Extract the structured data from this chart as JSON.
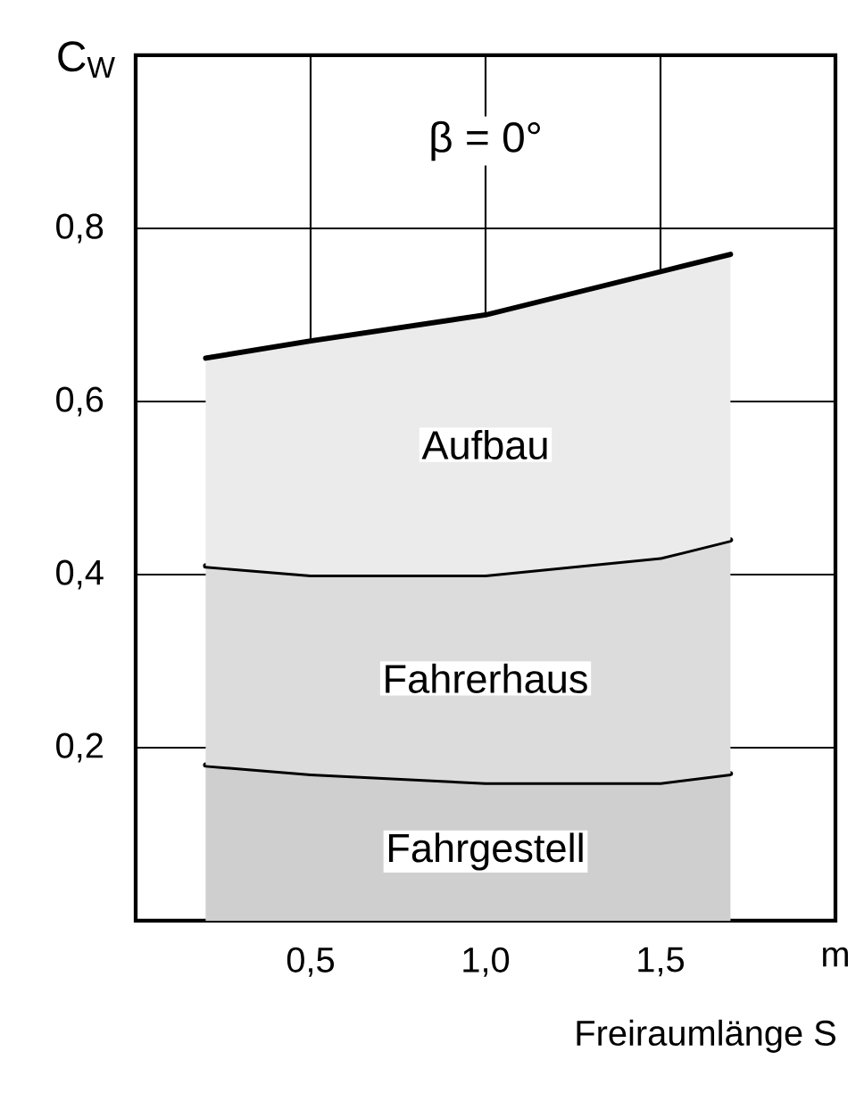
{
  "chart_data": {
    "type": "area",
    "stacked": true,
    "annotations": [
      "β = 0°"
    ],
    "xlabel": "Freiraumlänge S",
    "ylabel": "C$_{W}$",
    "x": [
      0.2,
      0.5,
      1.0,
      1.5,
      1.7
    ],
    "series": [
      {
        "name": "Fahrgestell",
        "color": "#cfcfcf",
        "values": [
          0.18,
          0.17,
          0.16,
          0.16,
          0.17
        ]
      },
      {
        "name": "Fahrerhaus",
        "color": "#dcdcdc",
        "values": [
          0.23,
          0.23,
          0.24,
          0.26,
          0.27
        ]
      },
      {
        "name": "Aufbau",
        "color": "#ebebeb",
        "values": [
          0.24,
          0.27,
          0.3,
          0.33,
          0.33
        ]
      }
    ],
    "xlim": [
      0,
      2.0
    ],
    "ylim": [
      0,
      1.0
    ],
    "xticks": [
      {
        "value": 0.5,
        "label": "0,5"
      },
      {
        "value": 1.0,
        "label": "1,0"
      },
      {
        "value": 1.5,
        "label": "1,5"
      },
      {
        "value": 2.0,
        "label": "m"
      }
    ],
    "yticks": [
      {
        "value": 0.2,
        "label": "0,2"
      },
      {
        "value": 0.4,
        "label": "0,4"
      },
      {
        "value": 0.6,
        "label": "0,6"
      },
      {
        "value": 0.8,
        "label": "0,8"
      }
    ],
    "grid": true
  }
}
